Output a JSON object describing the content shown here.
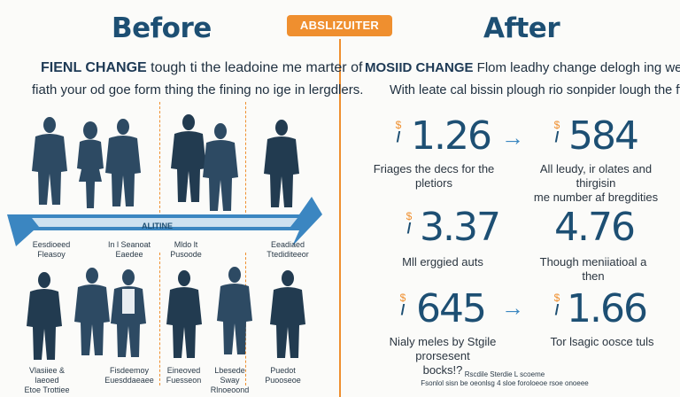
{
  "before": {
    "title": "Before",
    "lead_bold": "FIENL CHANGE",
    "lead_rest": " tough ti the leadoine me marter of",
    "lead_line2": "fiath your od goe form thing the fining no ige in lergdlers.",
    "band_label": "ALITINE",
    "captions": [
      {
        "l1": "Eesdioeed",
        "l2": "Fleasoy"
      },
      {
        "l1": "In l Seanoat",
        "l2": "Eaedee"
      },
      {
        "l1": "Mldo lt",
        "l2": "Pusoode"
      },
      {
        "l1": "Eeadiaed",
        "l2": "Ttediditeeor"
      },
      {
        "l1": "Vlasiiee & laeoed",
        "l2": "Etoe Trottiee"
      },
      {
        "l1": "Fisdeemoy",
        "l2": "Euesddaeaee"
      },
      {
        "l1": "Eineoved",
        "l2": "Fuesseon"
      },
      {
        "l1": "Lbesede Sway",
        "l2": "Rlnoeoond"
      },
      {
        "l1": "Puedot",
        "l2": "Puooseoe"
      }
    ]
  },
  "badge": "ABSLIZUITER",
  "after": {
    "title": "After",
    "lead_bold": "MOSIID CHANGE",
    "lead_rest": " Flom leadhy change delogh ing welets",
    "lead_line2": "With leate cal bissin plough rio sonpider lough the fflats.",
    "stats": [
      {
        "frac_top": "$",
        "frac_bot": "/",
        "value": "1.26",
        "desc1": "Friages the decs for the",
        "desc2": "pletiors"
      },
      {
        "frac_top": "$",
        "frac_bot": "/",
        "value": "584",
        "desc1": "All leudy, ir olates and thirgisin",
        "desc2": "me number af bregdities"
      },
      {
        "frac_top": "$",
        "frac_bot": "/",
        "value": "3.37",
        "desc1": "Mll erggied auts",
        "desc2": ""
      },
      {
        "frac_top": "",
        "frac_bot": "",
        "value": "4.76",
        "desc1": "Though meniiatioal a then",
        "desc2": ""
      },
      {
        "frac_top": "$",
        "frac_bot": "/",
        "value": "645",
        "desc1": "Nialy meles by Stgile prorsesent",
        "desc2": "bocks!?"
      },
      {
        "frac_top": "$",
        "frac_bot": "/",
        "value": "1.66",
        "desc1": "Tor lsagic oosce tuls",
        "desc2": ""
      }
    ],
    "arrow": "→",
    "footnote1": "Rscdile Sterdie L scoeme",
    "footnote2": "Fsonlol sisn be oeonlsg 4 sloe foroloeoe rsoe onoeee"
  },
  "colors": {
    "navy": "#1d4f73",
    "orange": "#ef8f2f",
    "band": "#3b86c1"
  },
  "icons": [
    "person-silhouette-icon",
    "arrow-right-icon"
  ]
}
